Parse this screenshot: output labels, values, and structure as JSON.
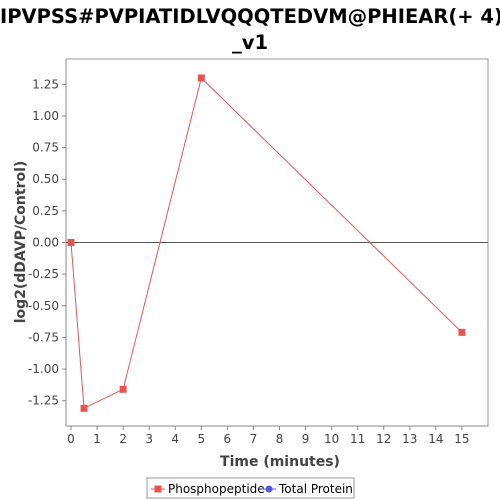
{
  "chart_data": {
    "type": "line",
    "title_lines": [
      "IPVPSS#PVPIATIDLVQQQTEDVM@PHIEAR(+ 4)",
      "_v1"
    ],
    "xlabel": "Time (minutes)",
    "ylabel": "log2(dDAVP/Control)",
    "xlim": [
      0,
      16
    ],
    "ylim": [
      -1.45,
      1.45
    ],
    "x_ticks": [
      0,
      1,
      2,
      3,
      4,
      5,
      6,
      7,
      8,
      9,
      10,
      11,
      12,
      13,
      14,
      15
    ],
    "y_ticks": [
      1.25,
      1.0,
      0.75,
      0.5,
      0.25,
      0.0,
      -0.25,
      -0.5,
      -0.75,
      -1.0,
      -1.25
    ],
    "y_tick_labels": [
      "1.25",
      "1.00",
      "0.75",
      "0.50",
      "0.25",
      "0.00",
      "-0.25",
      "-0.50",
      "-0.75",
      "-1.00",
      "-1.25"
    ],
    "grid": false,
    "zero_line": true,
    "legend_position": "bottom-center",
    "series": [
      {
        "name": "Phosphopeptide",
        "color": "#e85454",
        "marker": "square",
        "x": [
          0,
          0.5,
          2,
          5,
          15
        ],
        "y": [
          0.0,
          -1.31,
          -1.16,
          1.3,
          -0.71
        ]
      },
      {
        "name": "Total Protein",
        "color": "#5555ee",
        "marker": "circle",
        "x": [],
        "y": []
      }
    ]
  }
}
